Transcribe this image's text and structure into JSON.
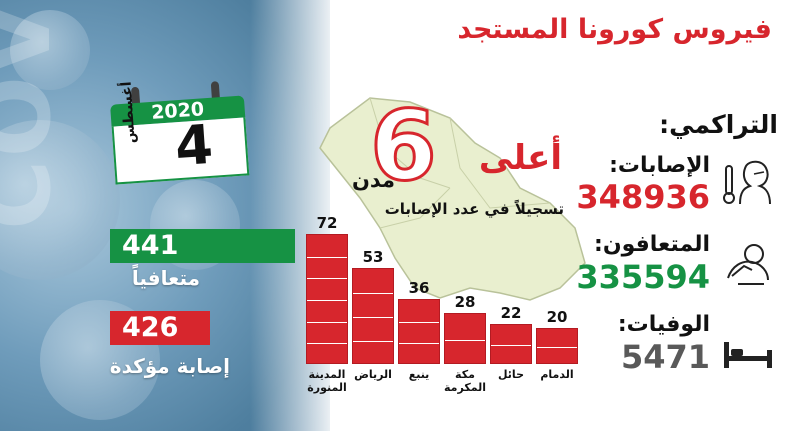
{
  "title": "فيروس كورونا المستجد",
  "calendar": {
    "year": "2020",
    "day": "4",
    "month": "أغسطس"
  },
  "top_cities": {
    "number": "6",
    "word1": "أعلى",
    "word2": "مدن",
    "subtitle": "تسجيلاً في عدد الإصابات"
  },
  "daily": {
    "recovered_value": "441",
    "recovered_label": "متعافياً",
    "confirmed_value": "426",
    "confirmed_label": "إصابة مؤكدة"
  },
  "cumulative": {
    "heading": "التراكمي:",
    "cases_label": "الإصابات:",
    "cases_value": "348936",
    "recovered_label": "المتعافون:",
    "recovered_value": "335594",
    "deaths_label": "الوفيات:",
    "deaths_value": "5471"
  },
  "colors": {
    "red": "#d7262d",
    "green": "#169244",
    "gray": "#595959"
  },
  "chart_data": {
    "type": "bar",
    "categories": [
      "المدينة المنورة",
      "الرياض",
      "ينبع",
      "مكة المكرمة",
      "حائل",
      "الدمام"
    ],
    "category_lines": [
      [
        "المدينة",
        "المنورة"
      ],
      [
        "الرياض"
      ],
      [
        "ينبع"
      ],
      [
        "مكة",
        "المكرمة"
      ],
      [
        "حائل"
      ],
      [
        "الدمام"
      ]
    ],
    "values": [
      72,
      53,
      36,
      28,
      22,
      20
    ],
    "value_labels": [
      "72",
      "53",
      "36",
      "28",
      "22",
      "20"
    ],
    "title": "",
    "xlabel": "",
    "ylabel": ""
  },
  "icons": {
    "cases": "sick-person-thermometer-icon",
    "recovered": "recovering-person-icon",
    "deaths": "bed-icon",
    "calendar": "calendar-icon"
  }
}
